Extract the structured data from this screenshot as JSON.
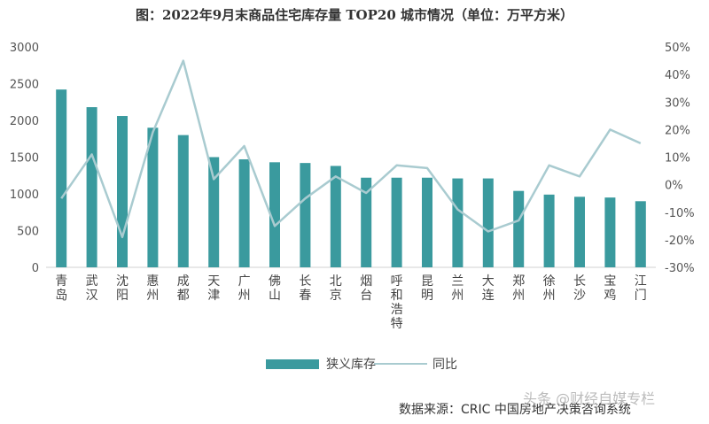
{
  "title": "图：2022年9月末商品住宅库存量 TOP20 城市情况（单位：万平方米）",
  "source": "数据来源：CRIC 中国房地产决策咨询系统",
  "watermark": "头条 @财经自媒专栏",
  "colors": {
    "bar": "#3a9a9e",
    "line": "#a9cbd0",
    "axis": "#d0d0d0",
    "text": "#555555"
  },
  "chart_data": {
    "type": "bar",
    "categories": [
      "青岛",
      "武汉",
      "沈阳",
      "惠州",
      "成都",
      "天津",
      "广州",
      "佛山",
      "长春",
      "北京",
      "烟台",
      "呼和浩特",
      "昆明",
      "兰州",
      "大连",
      "郑州",
      "徐州",
      "长沙",
      "宝鸡",
      "江门"
    ],
    "left_axis": {
      "min": 0,
      "max": 3000,
      "ticks": [
        0,
        500,
        1000,
        1500,
        2000,
        2500,
        3000
      ]
    },
    "right_axis": {
      "min": -30,
      "max": 50,
      "ticks": [
        "-30%",
        "-20%",
        "-10%",
        "0%",
        "10%",
        "20%",
        "30%",
        "40%",
        "50%"
      ]
    },
    "series": [
      {
        "name": "狭义库存",
        "type": "bar",
        "axis": "left",
        "values": [
          2420,
          2180,
          2060,
          1900,
          1800,
          1500,
          1470,
          1430,
          1420,
          1380,
          1220,
          1220,
          1220,
          1210,
          1210,
          1040,
          990,
          960,
          950,
          900
        ]
      },
      {
        "name": "同比",
        "type": "line",
        "axis": "right",
        "values": [
          -5,
          11,
          -19,
          19,
          45,
          2,
          14,
          -15,
          -5,
          3,
          -3,
          7,
          6,
          -9,
          -17,
          -13,
          7,
          3,
          20,
          15
        ]
      }
    ],
    "legend_position": "bottom"
  }
}
